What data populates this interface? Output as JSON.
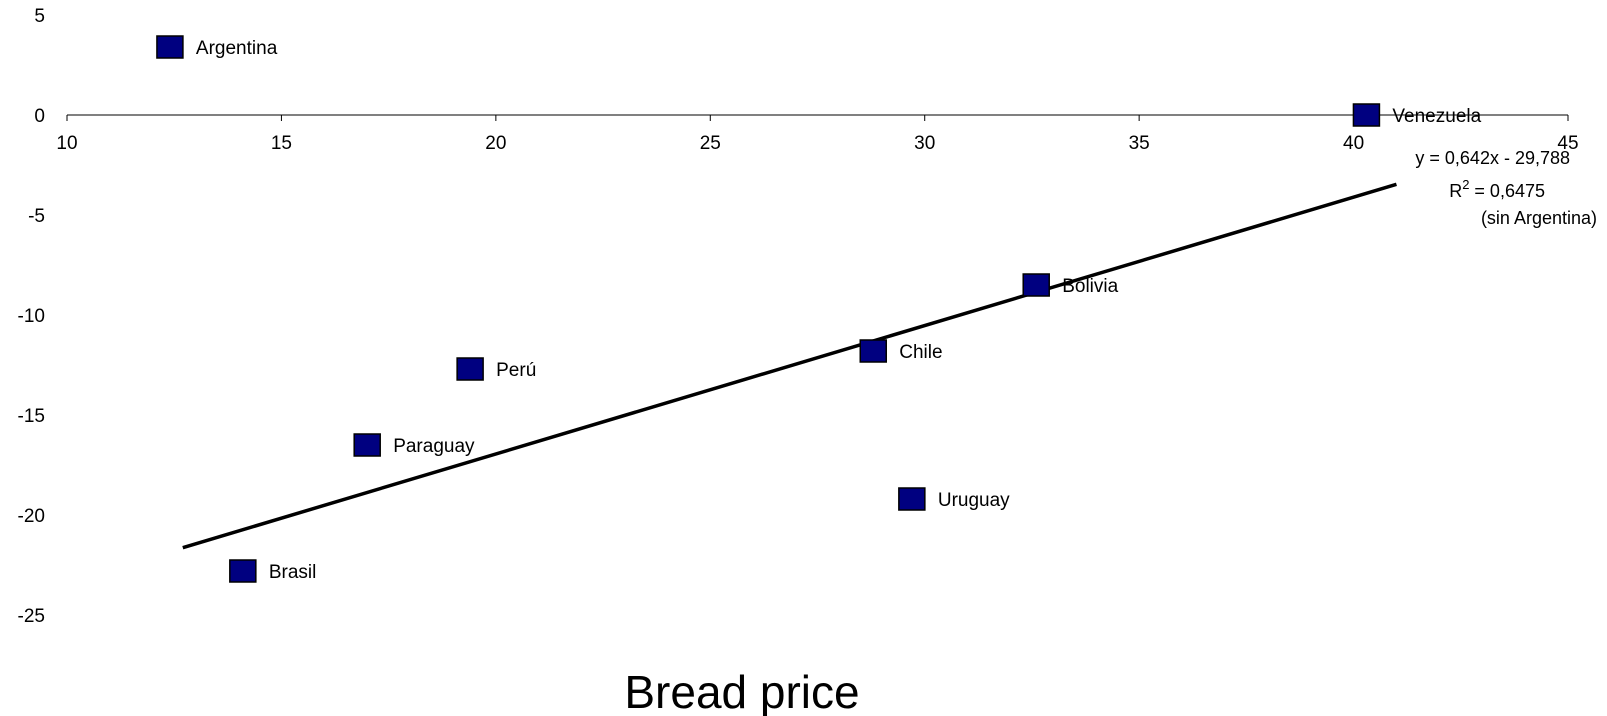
{
  "chart_data": {
    "type": "scatter",
    "title": "",
    "xlabel": "Bread price",
    "ylabel": "",
    "xlim": [
      10,
      45
    ],
    "ylim": [
      -25,
      5
    ],
    "x_ticks": [
      "10",
      "15",
      "20",
      "25",
      "30",
      "35",
      "40",
      "45"
    ],
    "y_ticks": [
      "5",
      "0",
      "-5",
      "-10",
      "-15",
      "-20",
      "-25"
    ],
    "series": [
      {
        "marker_color": "#000080",
        "points": [
          {
            "label": "Argentina",
            "x": 12.4,
            "y": 3.4
          },
          {
            "label": "Venezuela",
            "x": 40.3,
            "y": 0.0
          },
          {
            "label": "Bolivia",
            "x": 32.6,
            "y": -8.5
          },
          {
            "label": "Chile",
            "x": 28.8,
            "y": -11.8
          },
          {
            "label": "Perú",
            "x": 19.4,
            "y": -12.7
          },
          {
            "label": "Paraguay",
            "x": 17.0,
            "y": -16.5
          },
          {
            "label": "Uruguay",
            "x": 29.7,
            "y": -19.2
          },
          {
            "label": "Brasil",
            "x": 14.1,
            "y": -22.8
          }
        ]
      }
    ],
    "trendline": {
      "x_start": 12.7,
      "x_end": 41.0,
      "slope": 0.642,
      "intercept": -29.788,
      "equation": "y = 0,642x - 29,788",
      "r2_prefix": "R",
      "r2_exp": "2",
      "r2_value": " = 0,6475",
      "note": "(sin Argentina)"
    },
    "grid": false
  }
}
